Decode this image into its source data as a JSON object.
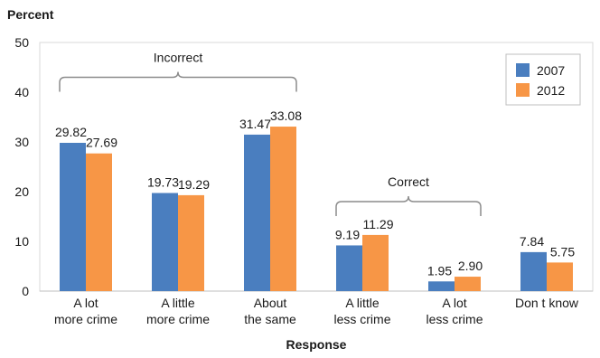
{
  "chart_data": {
    "type": "bar",
    "ylabel": "Percent",
    "xlabel": "Response",
    "ylim": [
      0,
      50
    ],
    "yticks": [
      0,
      10,
      20,
      30,
      40,
      50
    ],
    "grid": false,
    "legend_position": "top-right",
    "categories": [
      [
        "A lot",
        "more crime"
      ],
      [
        "A little",
        "more crime"
      ],
      [
        "About",
        "the same"
      ],
      [
        "A little",
        "less crime"
      ],
      [
        "A lot",
        "less crime"
      ],
      [
        "Don t know"
      ]
    ],
    "series": [
      {
        "name": "2007",
        "color": "#4a7ebf",
        "values": [
          29.82,
          19.73,
          31.47,
          9.19,
          1.95,
          7.84
        ],
        "labels": [
          "29.82",
          "19.73",
          "31.47",
          "9.19",
          "1.95",
          "7.84"
        ]
      },
      {
        "name": "2012",
        "color": "#f79646",
        "values": [
          27.69,
          19.29,
          33.08,
          11.29,
          2.9,
          5.75
        ],
        "labels": [
          "27.69",
          "19.29",
          "33.08",
          "11.29",
          "2.90",
          "5.75"
        ]
      }
    ],
    "annotations": [
      {
        "text": "Incorrect",
        "from_category": 0,
        "to_category": 2,
        "at_value": 43
      },
      {
        "text": "Correct",
        "from_category": 3,
        "to_category": 4,
        "at_value": 18
      }
    ]
  }
}
